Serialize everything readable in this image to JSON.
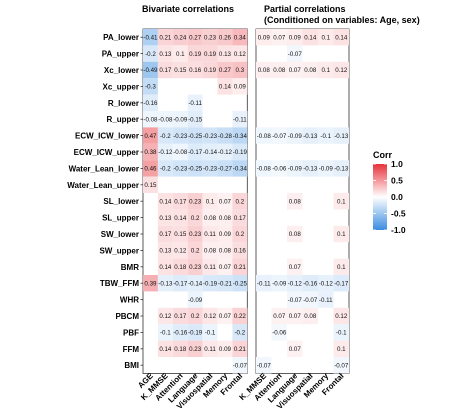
{
  "chart_data": {
    "type": "heatmap",
    "rows": [
      "PA_lower",
      "PA_upper",
      "Xc_lower",
      "Xc_upper",
      "R_lower",
      "R_upper",
      "ECW_ICW_lower",
      "ECW_ICW_upper",
      "Water_Lean_lower",
      "Water_Lean_upper",
      "SL_lower",
      "SL_upper",
      "SW_lower",
      "SW_upper",
      "BMR",
      "TBW_FFM",
      "WHR",
      "PBCM",
      "PBF",
      "FFM",
      "BMI"
    ],
    "panels": [
      {
        "title": "Bivariate correlations",
        "subtitle": "",
        "columns": [
          "AGE",
          "K_MMSE",
          "Attention",
          "Language",
          "Visuospatial",
          "Memory",
          "Frontal"
        ],
        "values": [
          [
            -0.41,
            0.21,
            0.24,
            0.27,
            0.23,
            0.26,
            0.34
          ],
          [
            -0.2,
            0.13,
            0.1,
            0.19,
            0.19,
            0.13,
            0.12
          ],
          [
            -0.49,
            0.17,
            0.15,
            0.16,
            0.19,
            0.27,
            0.3
          ],
          [
            -0.3,
            null,
            null,
            null,
            null,
            0.14,
            0.09
          ],
          [
            -0.16,
            null,
            null,
            -0.11,
            null,
            null,
            null
          ],
          [
            -0.08,
            -0.08,
            -0.09,
            -0.15,
            null,
            null,
            -0.11
          ],
          [
            0.47,
            -0.2,
            -0.23,
            -0.25,
            -0.23,
            -0.28,
            -0.34
          ],
          [
            0.38,
            -0.12,
            -0.08,
            -0.17,
            -0.14,
            -0.12,
            -0.19
          ],
          [
            0.46,
            -0.2,
            -0.23,
            -0.25,
            -0.23,
            -0.27,
            -0.34
          ],
          [
            0.15,
            null,
            null,
            null,
            null,
            null,
            null
          ],
          [
            null,
            0.14,
            0.17,
            0.23,
            0.1,
            0.07,
            0.2
          ],
          [
            null,
            0.13,
            0.14,
            0.2,
            0.08,
            0.08,
            0.17
          ],
          [
            null,
            0.17,
            0.15,
            0.23,
            0.11,
            0.09,
            0.2
          ],
          [
            null,
            0.13,
            0.12,
            0.2,
            0.08,
            0.08,
            0.16
          ],
          [
            null,
            0.14,
            0.18,
            0.23,
            0.11,
            0.07,
            0.21
          ],
          [
            0.39,
            -0.13,
            -0.17,
            -0.14,
            -0.19,
            -0.21,
            -0.25
          ],
          [
            null,
            null,
            null,
            -0.09,
            null,
            null,
            null
          ],
          [
            null,
            0.12,
            0.17,
            0.2,
            0.12,
            0.07,
            0.22
          ],
          [
            null,
            -0.1,
            -0.16,
            -0.19,
            -0.1,
            null,
            -0.2
          ],
          [
            null,
            0.14,
            0.18,
            0.23,
            0.11,
            0.09,
            0.21
          ],
          [
            null,
            null,
            null,
            null,
            null,
            null,
            -0.07
          ]
        ]
      },
      {
        "title": "Partial correlations",
        "subtitle": "(Conditioned on variables: Age, sex)",
        "columns": [
          "K_MMSE",
          "Attention",
          "Language",
          "Visuospatial",
          "Memory",
          "Frontal"
        ],
        "values": [
          [
            0.09,
            0.07,
            0.09,
            0.14,
            0.1,
            0.14
          ],
          [
            null,
            null,
            -0.07,
            null,
            null,
            null
          ],
          [
            0.08,
            0.08,
            0.07,
            0.08,
            0.1,
            0.12
          ],
          [
            null,
            null,
            null,
            null,
            null,
            null
          ],
          [
            null,
            null,
            null,
            null,
            null,
            null
          ],
          [
            null,
            null,
            null,
            null,
            null,
            null
          ],
          [
            -0.08,
            -0.07,
            -0.09,
            -0.13,
            -0.1,
            -0.13
          ],
          [
            null,
            null,
            null,
            null,
            null,
            null
          ],
          [
            -0.08,
            -0.06,
            -0.09,
            -0.13,
            -0.09,
            -0.13
          ],
          [
            null,
            null,
            null,
            null,
            null,
            null
          ],
          [
            null,
            null,
            0.08,
            null,
            null,
            0.1
          ],
          [
            null,
            null,
            null,
            null,
            null,
            null
          ],
          [
            null,
            null,
            0.08,
            null,
            null,
            0.1
          ],
          [
            null,
            null,
            null,
            null,
            null,
            null
          ],
          [
            null,
            null,
            0.07,
            null,
            null,
            0.1
          ],
          [
            -0.11,
            -0.09,
            -0.12,
            -0.16,
            -0.12,
            -0.17
          ],
          [
            null,
            null,
            -0.07,
            -0.07,
            -0.11,
            null
          ],
          [
            null,
            0.07,
            0.07,
            0.08,
            null,
            0.12
          ],
          [
            null,
            -0.06,
            null,
            null,
            null,
            -0.1
          ],
          [
            null,
            null,
            0.07,
            null,
            null,
            0.1
          ],
          [
            -0.07,
            null,
            null,
            null,
            null,
            -0.07
          ]
        ]
      }
    ],
    "legend": {
      "title": "Corr",
      "ticks": [
        "1.0",
        "0.5",
        "0.0",
        "-0.5",
        "-1.0"
      ],
      "tick_values": [
        1,
        0.5,
        0,
        -0.5,
        -1
      ],
      "placement": "right"
    },
    "colors": {
      "positive": "#e7323a",
      "neutral": "#ffffff",
      "negative": "#3a8ce0"
    },
    "zlim": [
      -1,
      1
    ]
  }
}
